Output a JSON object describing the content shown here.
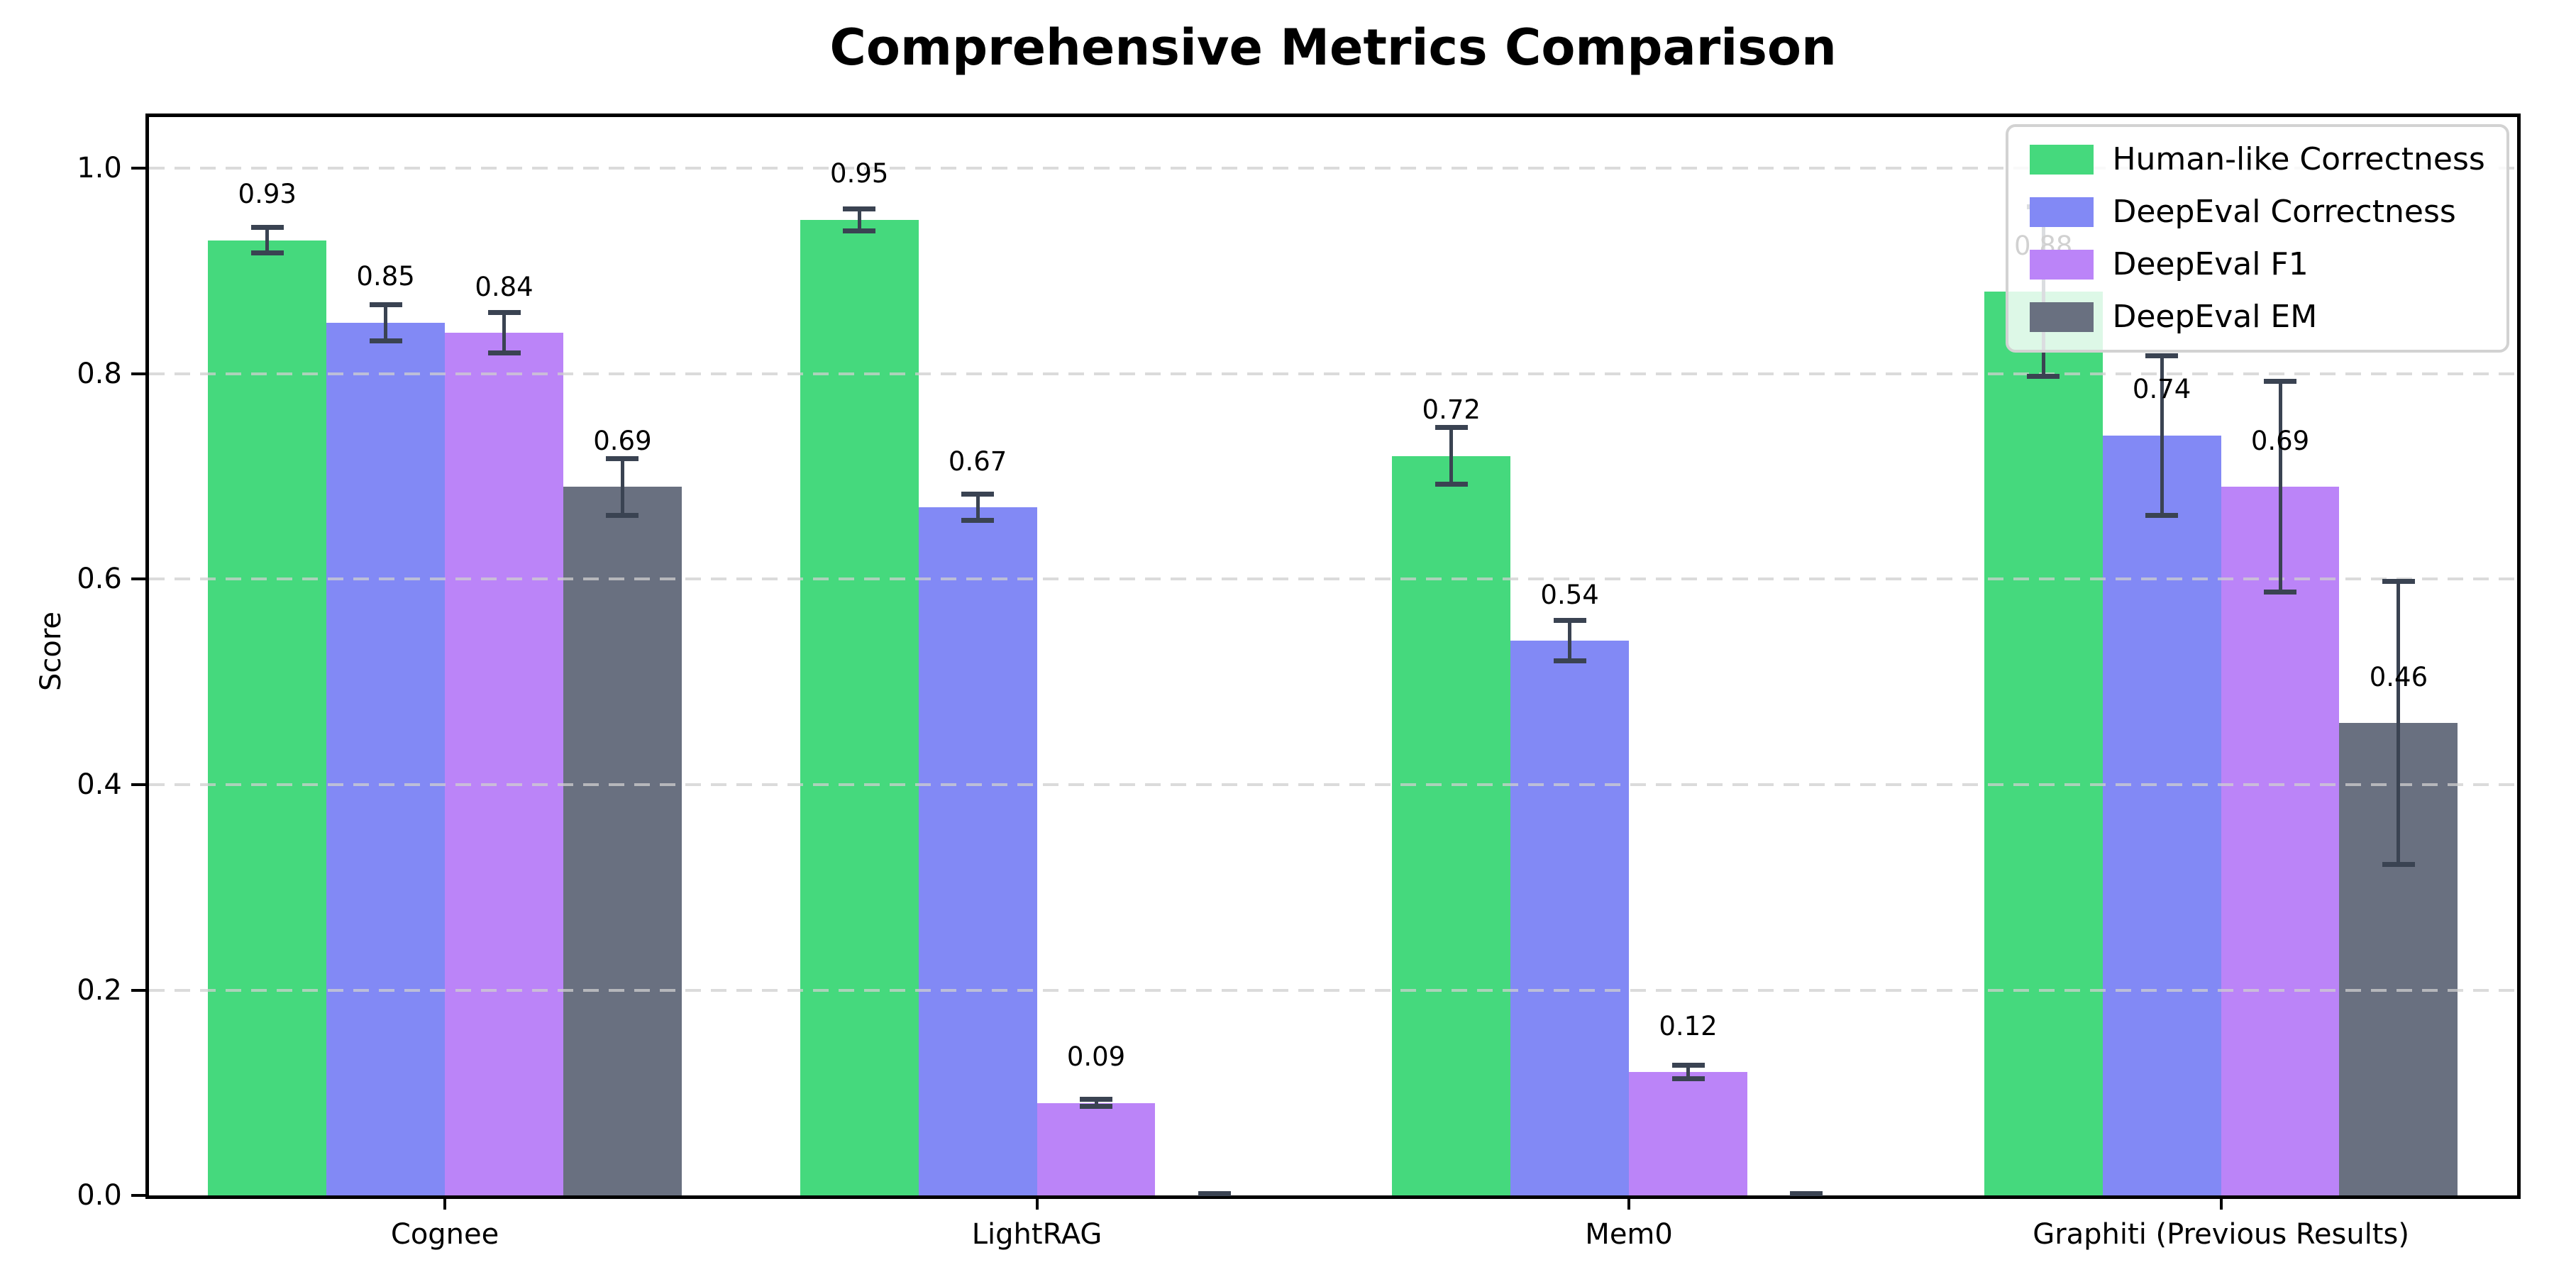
{
  "page": {
    "background": "#ffffff"
  },
  "chart_data": {
    "type": "bar",
    "title": "Comprehensive Metrics Comparison",
    "ylabel": "Score",
    "xlabel": "",
    "categories": [
      "Cognee",
      "LightRAG",
      "Mem0",
      "Graphiti (Previous Results)"
    ],
    "series": [
      {
        "name": "Human-like Correctness",
        "color": "#45d97d",
        "values": [
          0.93,
          0.95,
          0.72,
          0.88
        ],
        "errors": [
          0.015,
          0.013,
          0.03,
          0.085
        ],
        "labels": [
          "0.93",
          "0.95",
          "0.72",
          "0.88"
        ]
      },
      {
        "name": "DeepEval Correctness",
        "color": "#8289f5",
        "values": [
          0.85,
          0.67,
          0.54,
          0.74
        ],
        "errors": [
          0.02,
          0.015,
          0.022,
          0.08
        ],
        "labels": [
          "0.85",
          "0.67",
          "0.54",
          "0.74"
        ]
      },
      {
        "name": "DeepEval F1",
        "color": "#bb84f8",
        "values": [
          0.84,
          0.09,
          0.12,
          0.69
        ],
        "errors": [
          0.022,
          0.006,
          0.009,
          0.105
        ],
        "labels": [
          "0.84",
          "0.09",
          "0.12",
          "0.69"
        ]
      },
      {
        "name": "DeepEval EM",
        "color": "#697080",
        "values": [
          0.69,
          0.0,
          0.0,
          0.46
        ],
        "errors": [
          0.03,
          0.004,
          0.004,
          0.14
        ],
        "labels": [
          "0.69",
          "",
          "",
          "0.46"
        ]
      }
    ],
    "ylim": [
      0,
      1.05
    ],
    "yticks": [
      "0.0",
      "0.2",
      "0.4",
      "0.6",
      "0.8",
      "1.0"
    ],
    "grid": {
      "axis": "y",
      "style": "dashed",
      "color": "#cfcfcf"
    },
    "legend_position": "upper-right",
    "bar_width_frac": 0.05,
    "value_label_offset": 0.03,
    "errorbar_color": "#3a4352"
  }
}
